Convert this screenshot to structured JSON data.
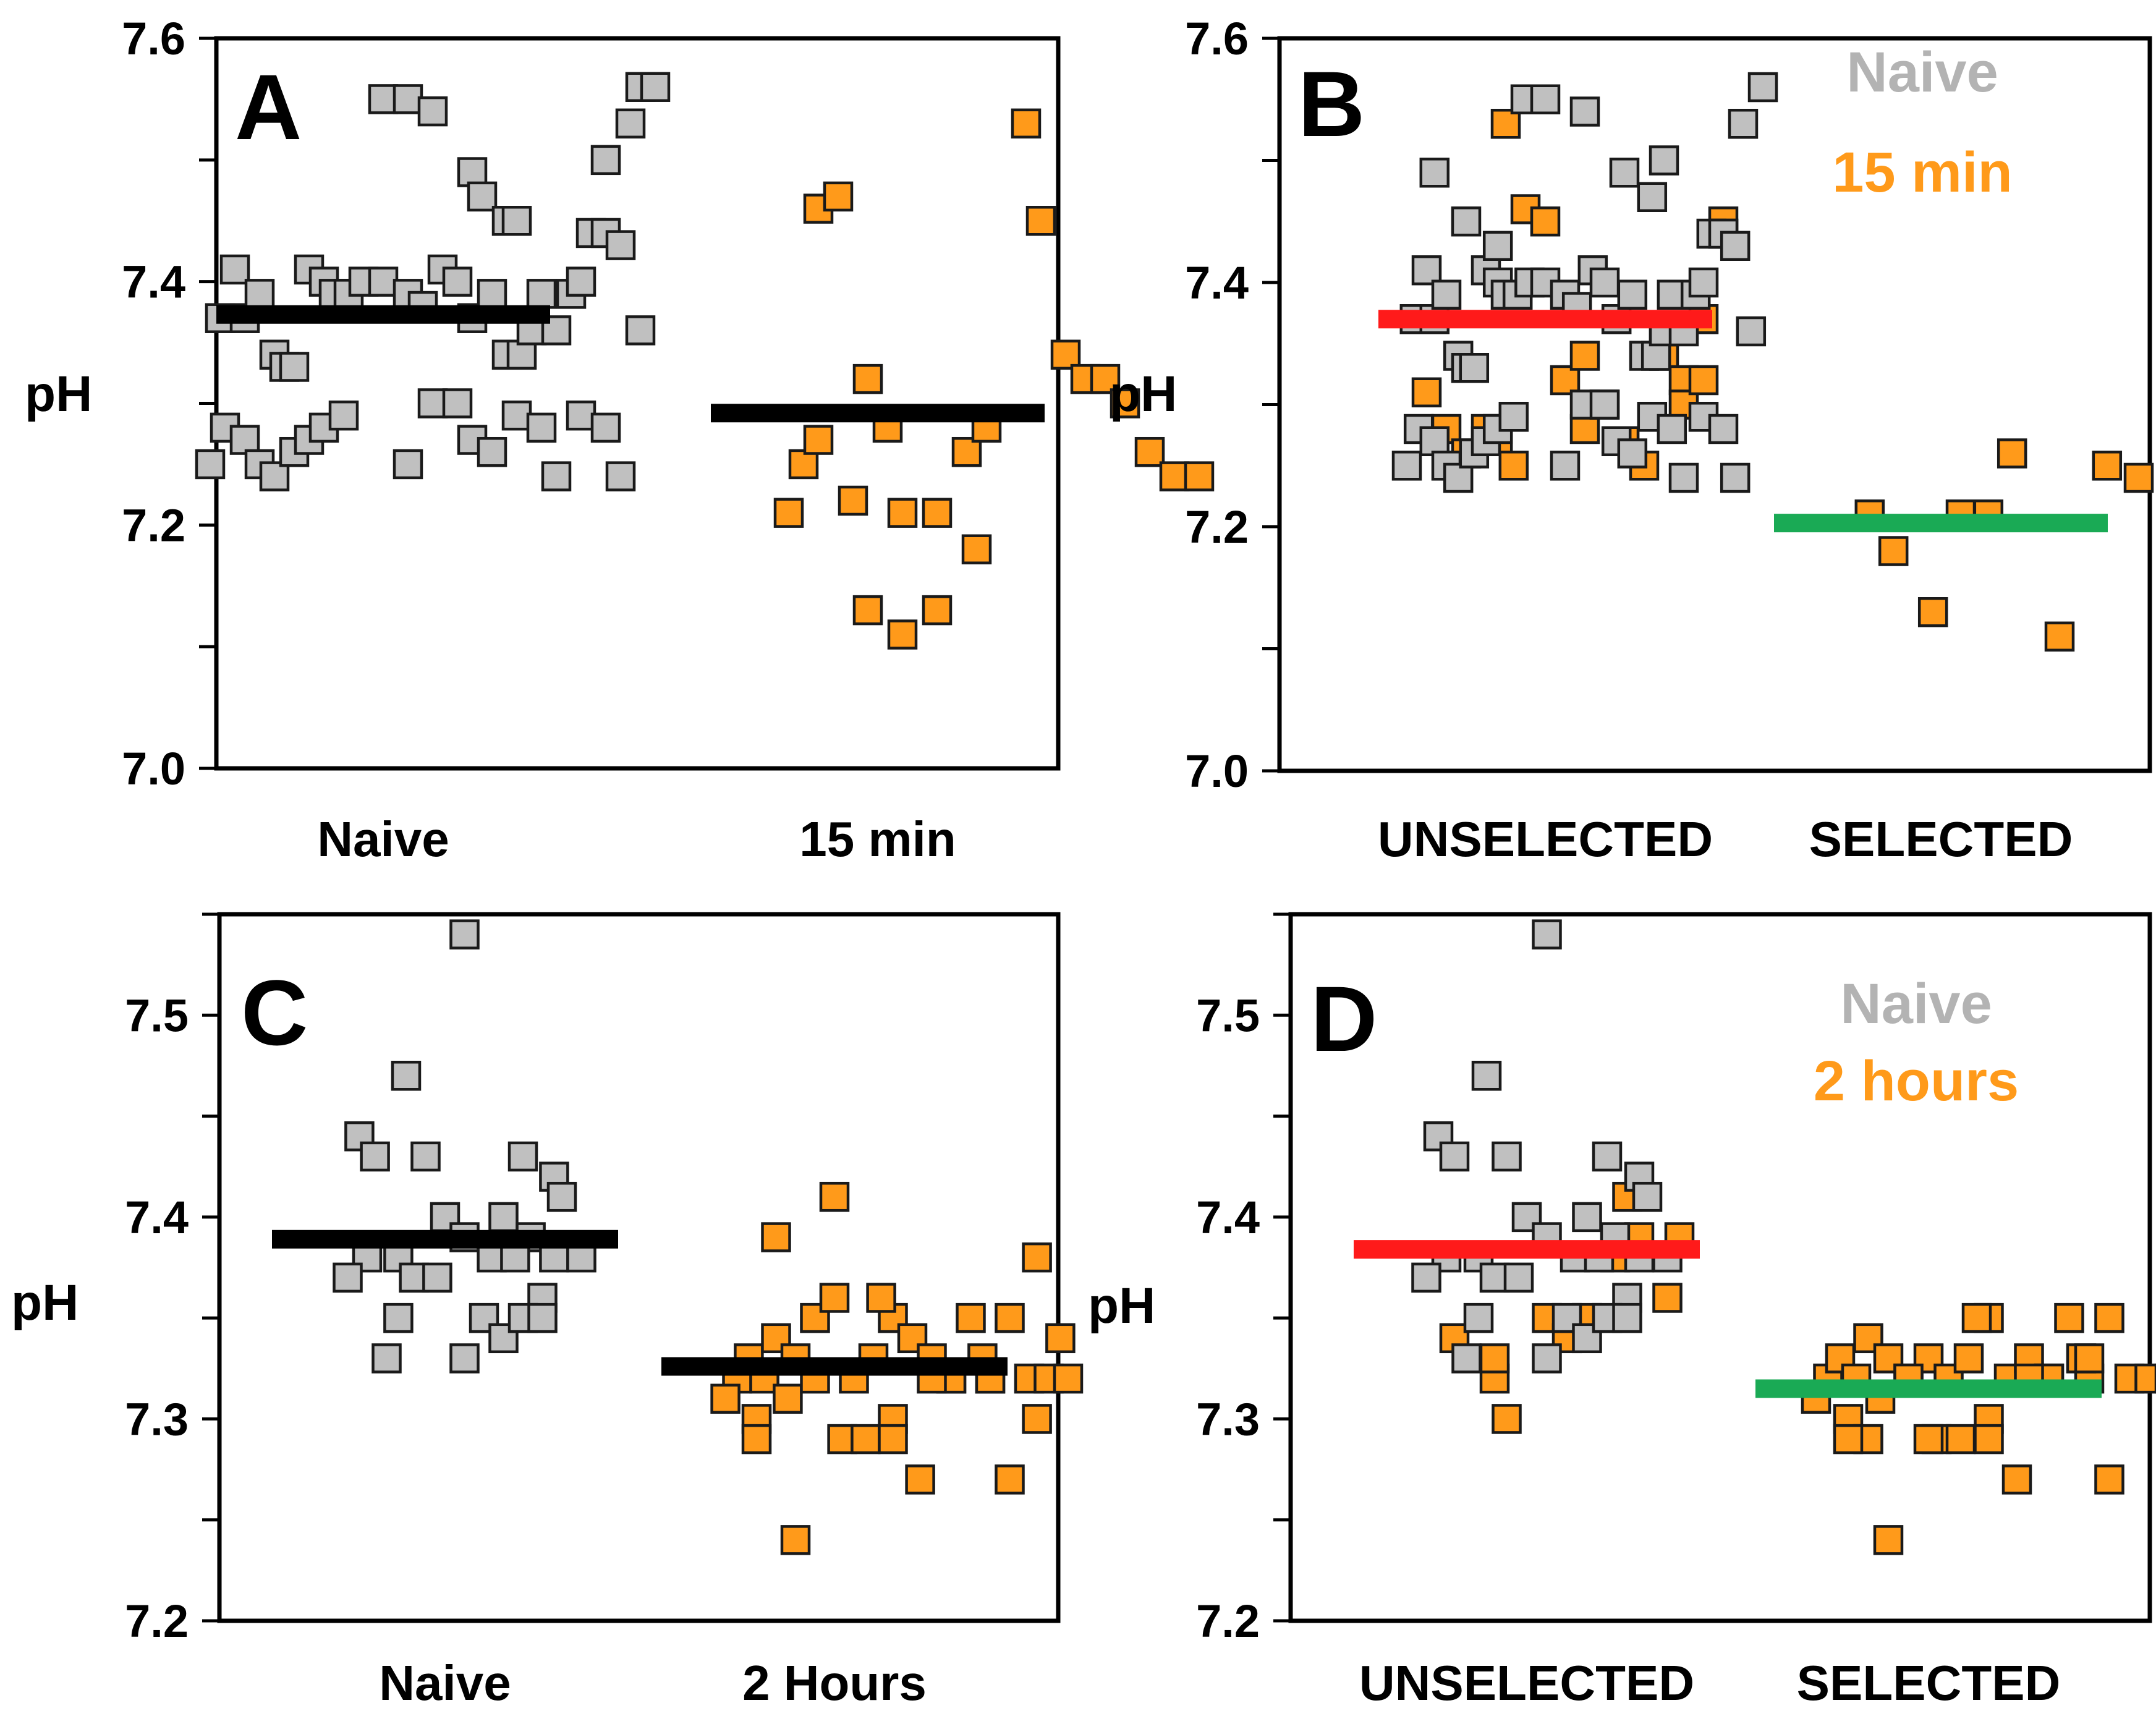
{
  "colors": {
    "naive": "#c0c0c0",
    "orange": "#ff9a1a",
    "red": "#ff1a1a",
    "green": "#1aaa55",
    "black": "#000000"
  },
  "chart_data": [
    {
      "id": "A",
      "type": "scatter",
      "letter": "A",
      "ylabel": "pH",
      "ylim": [
        7.0,
        7.6
      ],
      "yticks": [
        7.0,
        7.2,
        7.4,
        7.6
      ],
      "ytick_labels": [
        "7.0",
        "7.2",
        "7.4",
        "7.6"
      ],
      "categories": [
        "Naive",
        "15 min"
      ],
      "series": [
        {
          "group": "naive",
          "x": [
            0.0,
            0.05,
            0.1,
            0.18,
            0.2,
            0.25,
            0.27,
            0.45,
            0.52,
            -0.33,
            -0.3,
            -0.28,
            -0.25,
            -0.22,
            -0.2,
            -0.18,
            -0.15,
            -0.12,
            -0.1,
            -0.07,
            -0.04,
            0.0,
            0.05,
            0.08,
            0.12,
            0.15,
            0.18,
            0.22,
            0.25,
            0.28,
            0.3,
            0.32,
            0.35,
            0.38,
            0.4,
            0.42,
            0.45,
            0.48,
            0.5,
            0.52,
            0.55,
            -0.35,
            -0.32,
            -0.28,
            -0.25,
            -0.22,
            -0.18,
            -0.15,
            -0.12,
            -0.08,
            0.05,
            0.1,
            0.15,
            0.18,
            0.22,
            0.27,
            0.32,
            0.35,
            0.4,
            0.45,
            0.48
          ],
          "y": [
            7.55,
            7.55,
            7.54,
            7.49,
            7.47,
            7.45,
            7.45,
            7.5,
            7.56,
            7.37,
            7.41,
            7.37,
            7.39,
            7.34,
            7.33,
            7.33,
            7.41,
            7.4,
            7.39,
            7.39,
            7.4,
            7.4,
            7.39,
            7.38,
            7.41,
            7.4,
            7.37,
            7.39,
            7.34,
            7.34,
            7.36,
            7.39,
            7.36,
            7.39,
            7.4,
            7.44,
            7.44,
            7.43,
            7.53,
            7.36,
            7.56,
            7.25,
            7.28,
            7.27,
            7.25,
            7.24,
            7.26,
            7.27,
            7.28,
            7.29,
            7.25,
            7.3,
            7.3,
            7.27,
            7.26,
            7.29,
            7.28,
            7.24,
            7.29,
            7.28,
            7.24
          ]
        },
        {
          "group": "orange",
          "x": [
            0.88,
            0.92,
            0.98,
            1.02,
            0.85,
            0.88,
            0.95,
            1.05,
            1.12,
            1.18,
            1.2,
            1.3,
            1.33,
            1.38,
            1.42,
            1.46,
            1.5,
            1.55,
            1.6,
            1.65,
            0.82,
            0.98,
            1.05,
            1.12,
            1.22
          ],
          "y": [
            7.46,
            7.47,
            7.32,
            7.28,
            7.25,
            7.27,
            7.22,
            7.21,
            7.21,
            7.26,
            7.18,
            7.53,
            7.45,
            7.34,
            7.32,
            7.32,
            7.3,
            7.26,
            7.24,
            7.24,
            7.21,
            7.13,
            7.11,
            7.13,
            7.28
          ]
        }
      ],
      "mean_lines": [
        {
          "cat": 0,
          "y": 7.373,
          "color": "black"
        },
        {
          "cat": 1,
          "y": 7.292,
          "color": "black"
        }
      ],
      "legend": []
    },
    {
      "id": "B",
      "type": "scatter",
      "letter": "B",
      "ylabel": "pH",
      "ylim": [
        7.0,
        7.6
      ],
      "yticks": [
        7.0,
        7.2,
        7.4,
        7.6
      ],
      "ytick_labels": [
        "7.0",
        "7.2",
        "7.4",
        "7.6"
      ],
      "categories": [
        "UNSELECTED",
        "SELECTED"
      ],
      "series": [
        {
          "group": "orange",
          "x": [
            -0.1,
            -0.05,
            0.0,
            0.05,
            0.1,
            0.15,
            0.2,
            0.25,
            0.3,
            0.35,
            0.4,
            0.45,
            -0.3,
            -0.25,
            -0.2,
            -0.15,
            -0.12,
            -0.08,
            0.1,
            0.2,
            0.3,
            0.35,
            0.4,
            0.45
          ],
          "y": [
            7.53,
            7.46,
            7.45,
            7.32,
            7.28,
            7.3,
            7.27,
            7.25,
            7.34,
            7.32,
            7.37,
            7.45,
            7.31,
            7.28,
            7.26,
            7.28,
            7.27,
            7.25,
            7.34,
            7.27,
            7.36,
            7.3,
            7.32,
            7.44
          ]
        },
        {
          "group": "naive",
          "x": [
            -0.33,
            -0.3,
            -0.28,
            -0.25,
            -0.22,
            -0.2,
            -0.18,
            -0.15,
            -0.12,
            -0.1,
            -0.07,
            -0.04,
            0.0,
            0.05,
            0.08,
            0.12,
            0.15,
            0.18,
            0.22,
            0.25,
            0.28,
            0.3,
            0.32,
            0.35,
            0.38,
            0.4,
            0.42,
            0.45,
            0.48,
            0.5,
            0.52,
            0.55,
            -0.35,
            -0.32,
            -0.28,
            -0.25,
            -0.22,
            -0.18,
            -0.15,
            -0.12,
            -0.08,
            0.05,
            0.1,
            0.15,
            0.18,
            0.22,
            0.27,
            0.32,
            0.35,
            0.4,
            0.45,
            0.48,
            -0.05,
            0.0,
            0.1,
            0.2,
            0.27,
            -0.2,
            -0.28,
            -0.12,
            0.3
          ],
          "y": [
            7.37,
            7.41,
            7.37,
            7.39,
            7.34,
            7.33,
            7.33,
            7.41,
            7.4,
            7.39,
            7.39,
            7.4,
            7.4,
            7.39,
            7.38,
            7.41,
            7.4,
            7.37,
            7.39,
            7.34,
            7.34,
            7.36,
            7.39,
            7.36,
            7.39,
            7.4,
            7.44,
            7.44,
            7.43,
            7.53,
            7.36,
            7.56,
            7.25,
            7.28,
            7.27,
            7.25,
            7.24,
            7.26,
            7.27,
            7.28,
            7.29,
            7.25,
            7.3,
            7.3,
            7.27,
            7.26,
            7.29,
            7.28,
            7.24,
            7.29,
            7.28,
            7.24,
            7.55,
            7.55,
            7.54,
            7.49,
            7.47,
            7.45,
            7.49,
            7.43,
            7.5
          ]
        },
        {
          "group": "orange",
          "x": [
            0.82,
            0.88,
            0.98,
            1.05,
            1.12,
            1.18,
            1.3,
            1.42,
            1.5
          ],
          "y": [
            7.21,
            7.18,
            7.13,
            7.21,
            7.21,
            7.26,
            7.11,
            7.25,
            7.24
          ]
        }
      ],
      "mean_lines": [
        {
          "cat": 0,
          "y": 7.37,
          "color": "red"
        },
        {
          "cat": 1,
          "y": 7.203,
          "color": "green"
        }
      ],
      "legend": [
        {
          "label": "Naive",
          "color": "#b3b3b3"
        },
        {
          "label": "15 min",
          "color": "#ff9a1a"
        }
      ]
    },
    {
      "id": "C",
      "type": "scatter",
      "letter": "C",
      "ylabel": "pH",
      "ylim": [
        7.2,
        7.55
      ],
      "yticks": [
        7.2,
        7.3,
        7.4,
        7.5
      ],
      "ytick_labels": [
        "7.2",
        "7.3",
        "7.4",
        "7.5"
      ],
      "categories": [
        "Naive",
        "2 Hours"
      ],
      "series": [
        {
          "group": "naive",
          "x": [
            0.05,
            -0.22,
            -0.18,
            -0.1,
            -0.05,
            0.0,
            -0.2,
            -0.12,
            0.05,
            0.12,
            0.2,
            0.28,
            0.15,
            0.22,
            0.28,
            0.35,
            -0.25,
            -0.08,
            -0.02,
            0.18,
            0.25,
            -0.12,
            0.1,
            -0.15,
            0.05,
            0.15,
            0.2,
            0.25,
            0.3
          ],
          "y": [
            7.54,
            7.44,
            7.43,
            7.47,
            7.43,
            7.4,
            7.38,
            7.38,
            7.39,
            7.38,
            7.43,
            7.42,
            7.4,
            7.39,
            7.38,
            7.38,
            7.37,
            7.37,
            7.37,
            7.38,
            7.36,
            7.35,
            7.35,
            7.33,
            7.33,
            7.34,
            7.35,
            7.35,
            7.41
          ]
        },
        {
          "group": "orange",
          "x": [
            0.75,
            0.78,
            0.82,
            0.85,
            0.9,
            0.95,
            1.0,
            1.05,
            1.1,
            1.15,
            1.2,
            1.25,
            1.3,
            1.35,
            1.4,
            1.45,
            1.5,
            1.55,
            1.6,
            0.72,
            0.8,
            0.88,
            0.95,
            1.02,
            1.08,
            1.15,
            1.22,
            1.3,
            1.38,
            1.45,
            1.52,
            1.58,
            0.85,
            1.0,
            1.12,
            1.25,
            1.4,
            0.8,
            1.15,
            1.52
          ],
          "y": [
            7.32,
            7.33,
            7.32,
            7.34,
            7.33,
            7.35,
            7.36,
            7.32,
            7.33,
            7.35,
            7.34,
            7.33,
            7.32,
            7.35,
            7.32,
            7.35,
            7.32,
            7.32,
            7.32,
            7.31,
            7.3,
            7.31,
            7.32,
            7.29,
            7.29,
            7.3,
            7.27,
            7.32,
            7.33,
            7.27,
            7.3,
            7.34,
            7.39,
            7.41,
            7.36,
            7.32,
            7.32,
            7.29,
            7.29,
            7.38
          ]
        },
        {
          "group": "orange",
          "x": [
            0.9
          ],
          "y": [
            7.24
          ]
        }
      ],
      "mean_lines": [
        {
          "cat": 0,
          "y": 7.389,
          "color": "black"
        },
        {
          "cat": 1,
          "y": 7.326,
          "color": "black"
        }
      ],
      "legend": []
    },
    {
      "id": "D",
      "type": "scatter",
      "letter": "D",
      "ylabel": "pH",
      "ylim": [
        7.2,
        7.55
      ],
      "yticks": [
        7.2,
        7.3,
        7.4,
        7.5
      ],
      "ytick_labels": [
        "7.2",
        "7.3",
        "7.4",
        "7.5"
      ],
      "categories": [
        "UNSELECTED",
        "SELECTED"
      ],
      "series": [
        {
          "group": "orange",
          "x": [
            -0.18,
            -0.08,
            -0.05,
            0.05,
            0.1,
            0.15,
            0.22,
            0.28,
            0.35,
            0.38,
            -0.08,
            0.25
          ],
          "y": [
            7.34,
            7.32,
            7.3,
            7.35,
            7.34,
            7.35,
            7.38,
            7.39,
            7.36,
            7.39,
            7.33,
            7.41
          ]
        },
        {
          "group": "naive",
          "x": [
            0.05,
            -0.22,
            -0.18,
            -0.1,
            -0.05,
            0.0,
            -0.2,
            -0.12,
            0.05,
            0.12,
            0.2,
            0.28,
            0.15,
            0.22,
            0.28,
            0.35,
            -0.25,
            -0.08,
            -0.02,
            0.18,
            0.25,
            -0.12,
            0.1,
            -0.15,
            0.05,
            0.15,
            0.2,
            0.25,
            0.3
          ],
          "y": [
            7.54,
            7.44,
            7.43,
            7.47,
            7.43,
            7.4,
            7.38,
            7.38,
            7.39,
            7.38,
            7.43,
            7.42,
            7.4,
            7.39,
            7.38,
            7.38,
            7.37,
            7.37,
            7.37,
            7.38,
            7.36,
            7.35,
            7.35,
            7.33,
            7.33,
            7.34,
            7.35,
            7.35,
            7.41
          ]
        },
        {
          "group": "orange",
          "x": [
            0.75,
            0.78,
            0.82,
            0.85,
            0.9,
            0.95,
            1.0,
            1.05,
            1.1,
            1.15,
            1.2,
            1.25,
            1.3,
            1.35,
            1.4,
            1.45,
            1.5,
            1.55,
            1.6,
            0.72,
            0.8,
            0.88,
            0.95,
            1.02,
            1.08,
            1.15,
            1.22,
            1.3,
            1.38,
            1.45,
            0.85,
            1.0,
            1.12,
            1.25,
            1.4,
            0.8,
            1.15,
            0.9
          ],
          "y": [
            7.32,
            7.33,
            7.32,
            7.34,
            7.33,
            7.32,
            7.33,
            7.32,
            7.33,
            7.35,
            7.32,
            7.33,
            7.32,
            7.35,
            7.32,
            7.35,
            7.32,
            7.32,
            7.32,
            7.31,
            7.3,
            7.31,
            7.32,
            7.29,
            7.29,
            7.3,
            7.27,
            7.32,
            7.33,
            7.27,
            7.29,
            7.29,
            7.35,
            7.32,
            7.33,
            7.29,
            7.29,
            7.24
          ]
        }
      ],
      "mean_lines": [
        {
          "cat": 0,
          "y": 7.384,
          "color": "red"
        },
        {
          "cat": 1,
          "y": 7.315,
          "color": "green"
        }
      ],
      "legend": [
        {
          "label": "Naive",
          "color": "#b3b3b3"
        },
        {
          "label": "2 hours",
          "color": "#ff9a1a"
        }
      ]
    }
  ]
}
